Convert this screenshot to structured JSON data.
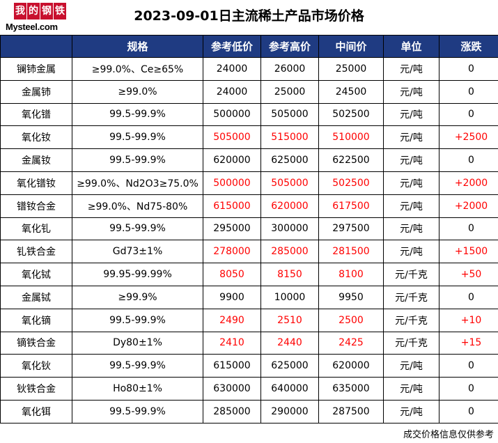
{
  "logo": {
    "chars": [
      "我",
      "的",
      "钢",
      "铁"
    ],
    "brand": "Mysteel.com"
  },
  "title": "2023-09-01日主流稀土产品市场价格",
  "columns": [
    "",
    "规格",
    "参考低价",
    "参考高价",
    "中间价",
    "单位",
    "涨跌"
  ],
  "colors": {
    "header_bg": "#1f3b82",
    "header_text": "#ffffff",
    "price_up": "#ff0000",
    "logo_red": "#c8102e"
  },
  "rows": [
    {
      "name": "镧铈金属",
      "spec": "≥99.0%、Ce≥65%",
      "low": "24000",
      "high": "26000",
      "mid": "25000",
      "unit": "元/吨",
      "change": "0",
      "up": false
    },
    {
      "name": "金属铈",
      "spec": "≥99.0%",
      "low": "24000",
      "high": "25000",
      "mid": "24500",
      "unit": "元/吨",
      "change": "0",
      "up": false
    },
    {
      "name": "氧化镨",
      "spec": "99.5-99.9%",
      "low": "500000",
      "high": "505000",
      "mid": "502500",
      "unit": "元/吨",
      "change": "0",
      "up": false
    },
    {
      "name": "氧化钕",
      "spec": "99.5-99.9%",
      "low": "505000",
      "high": "515000",
      "mid": "510000",
      "unit": "元/吨",
      "change": "+2500",
      "up": true
    },
    {
      "name": "金属钕",
      "spec": "99.5-99.9%",
      "low": "620000",
      "high": "625000",
      "mid": "622500",
      "unit": "元/吨",
      "change": "0",
      "up": false
    },
    {
      "name": "氧化镨钕",
      "spec": "≥99.0%、Nd2O3≥75.0%",
      "low": "500000",
      "high": "505000",
      "mid": "502500",
      "unit": "元/吨",
      "change": "+2000",
      "up": true
    },
    {
      "name": "镨钕合金",
      "spec": "≥99.0%、Nd75-80%",
      "low": "615000",
      "high": "620000",
      "mid": "617500",
      "unit": "元/吨",
      "change": "+2000",
      "up": true
    },
    {
      "name": "氧化钆",
      "spec": "99.5-99.9%",
      "low": "295000",
      "high": "300000",
      "mid": "297500",
      "unit": "元/吨",
      "change": "0",
      "up": false
    },
    {
      "name": "钆铁合金",
      "spec": "Gd73±1%",
      "low": "278000",
      "high": "285000",
      "mid": "281500",
      "unit": "元/吨",
      "change": "+1500",
      "up": true
    },
    {
      "name": "氧化铽",
      "spec": "99.95-99.99%",
      "low": "8050",
      "high": "8150",
      "mid": "8100",
      "unit": "元/千克",
      "change": "+50",
      "up": true
    },
    {
      "name": "金属铽",
      "spec": "≥99.9%",
      "low": "9900",
      "high": "10000",
      "mid": "9950",
      "unit": "元/千克",
      "change": "0",
      "up": false
    },
    {
      "name": "氧化镝",
      "spec": "99.5-99.9%",
      "low": "2490",
      "high": "2510",
      "mid": "2500",
      "unit": "元/千克",
      "change": "+10",
      "up": true
    },
    {
      "name": "镝铁合金",
      "spec": "Dy80±1%",
      "low": "2410",
      "high": "2440",
      "mid": "2425",
      "unit": "元/千克",
      "change": "+15",
      "up": true
    },
    {
      "name": "氧化钬",
      "spec": "99.5-99.9%",
      "low": "615000",
      "high": "625000",
      "mid": "620000",
      "unit": "元/吨",
      "change": "0",
      "up": false
    },
    {
      "name": "钬铁合金",
      "spec": "Ho80±1%",
      "low": "630000",
      "high": "640000",
      "mid": "635000",
      "unit": "元/吨",
      "change": "0",
      "up": false
    },
    {
      "name": "氧化铒",
      "spec": "99.5-99.9%",
      "low": "285000",
      "high": "290000",
      "mid": "287500",
      "unit": "元/吨",
      "change": "0",
      "up": false
    }
  ],
  "footer_note": "成交价格信息仅供参考"
}
